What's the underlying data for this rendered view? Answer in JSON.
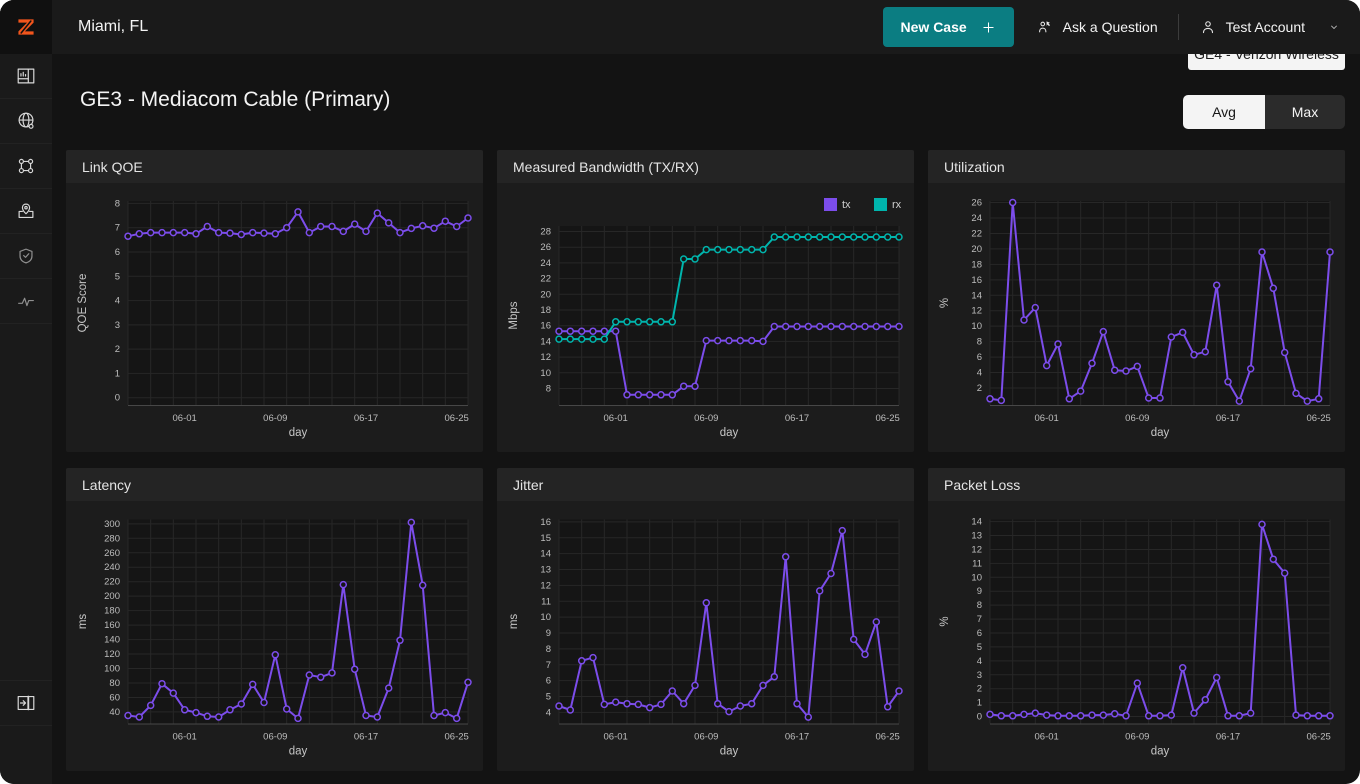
{
  "header": {
    "location": "Miami, FL",
    "new_case_label": "New Case",
    "ask_question_label": "Ask a Question",
    "account_label": "Test Account"
  },
  "page": {
    "title": "GE3 - Mediacom Cable (Primary)",
    "link_button_label": "GE4 - Verizon Wireless",
    "toggle": {
      "avg": "Avg",
      "max": "Max",
      "selected": "Avg"
    }
  },
  "sidebar": {
    "items": [
      {
        "icon": "dashboard-grid-icon"
      },
      {
        "icon": "globe-network-icon"
      },
      {
        "icon": "topology-nodes-icon"
      },
      {
        "icon": "map-pin-icon"
      },
      {
        "icon": "shield-check-icon"
      },
      {
        "icon": "pulse-icon"
      }
    ],
    "bottom_item": {
      "icon": "collapse-panel-icon"
    }
  },
  "colors": {
    "accent_purple": "#7c4deb",
    "accent_teal": "#00b5ad",
    "button_teal": "#0b7d82",
    "logo_orange": "#f2551c",
    "selected_toggle_bg": "#f4f4f4"
  },
  "chart_data": [
    {
      "type": "line",
      "title": "Link QOE",
      "xlabel": "day",
      "ylabel": "QOE Score",
      "x_tick_labels": [
        "06-01",
        "06-09",
        "06-17",
        "06-25"
      ],
      "x_tick_indices": [
        5,
        13,
        21,
        29
      ],
      "n_points": 31,
      "ylim": [
        -0.3,
        8.1
      ],
      "yticks": [
        0,
        1,
        2,
        3,
        4,
        5,
        6,
        7,
        8
      ],
      "series": [
        {
          "name": "qoe",
          "color": "#7c4deb",
          "values": [
            6.65,
            6.75,
            6.8,
            6.8,
            6.8,
            6.8,
            6.75,
            7.05,
            6.8,
            6.78,
            6.72,
            6.8,
            6.78,
            6.75,
            7.0,
            7.65,
            6.8,
            7.05,
            7.05,
            6.85,
            7.15,
            6.85,
            7.6,
            7.2,
            6.8,
            6.97,
            7.08,
            6.98,
            7.27,
            7.05,
            7.4
          ]
        }
      ]
    },
    {
      "type": "line",
      "title": "Measured Bandwidth (TX/RX)",
      "xlabel": "day",
      "ylabel": "Mbps",
      "x_tick_labels": [
        "06-01",
        "06-09",
        "06-17",
        "06-25"
      ],
      "x_tick_indices": [
        5,
        13,
        21,
        29
      ],
      "n_points": 31,
      "ylim": [
        5.9,
        28.7
      ],
      "yticks": [
        8,
        10,
        12,
        14,
        16,
        18,
        20,
        22,
        24,
        26,
        28
      ],
      "legend_position": "top-right",
      "series": [
        {
          "name": "tx",
          "color": "#7c4deb",
          "values": [
            15.3,
            15.3,
            15.3,
            15.3,
            15.3,
            15.3,
            7.2,
            7.2,
            7.2,
            7.2,
            7.2,
            8.3,
            8.3,
            14.1,
            14.1,
            14.1,
            14.1,
            14.1,
            14.0,
            15.9,
            15.9,
            15.9,
            15.9,
            15.9,
            15.9,
            15.9,
            15.9,
            15.9,
            15.9,
            15.9,
            15.9
          ]
        },
        {
          "name": "rx",
          "color": "#00b5ad",
          "values": [
            14.3,
            14.3,
            14.3,
            14.3,
            14.3,
            16.5,
            16.5,
            16.5,
            16.5,
            16.5,
            16.5,
            24.5,
            24.5,
            25.7,
            25.7,
            25.7,
            25.7,
            25.7,
            25.7,
            27.3,
            27.3,
            27.3,
            27.3,
            27.3,
            27.3,
            27.3,
            27.3,
            27.3,
            27.3,
            27.3,
            27.3
          ]
        }
      ]
    },
    {
      "type": "line",
      "title": "Utilization",
      "xlabel": "day",
      "ylabel": "%",
      "x_tick_labels": [
        "06-01",
        "06-09",
        "06-17",
        "06-25"
      ],
      "x_tick_indices": [
        5,
        13,
        21,
        29
      ],
      "n_points": 31,
      "ylim": [
        -0.2,
        26.2
      ],
      "yticks": [
        2,
        4,
        6,
        8,
        10,
        12,
        14,
        16,
        18,
        20,
        22,
        24,
        26
      ],
      "series": [
        {
          "name": "utilization",
          "color": "#7c4deb",
          "values": [
            0.6,
            0.4,
            26,
            10.8,
            12.4,
            4.9,
            7.7,
            0.6,
            1.6,
            5.2,
            9.3,
            4.3,
            4.2,
            4.8,
            0.7,
            0.7,
            8.6,
            9.2,
            6.3,
            6.7,
            15.3,
            2.8,
            0.3,
            4.5,
            19.6,
            14.9,
            6.6,
            1.3,
            0.3,
            0.6,
            19.6
          ]
        }
      ]
    },
    {
      "type": "line",
      "title": "Latency",
      "xlabel": "day",
      "ylabel": "ms",
      "x_tick_labels": [
        "06-01",
        "06-09",
        "06-17",
        "06-25"
      ],
      "x_tick_indices": [
        5,
        13,
        21,
        29
      ],
      "n_points": 31,
      "ylim": [
        24,
        306
      ],
      "yticks": [
        40,
        60,
        80,
        100,
        120,
        140,
        160,
        180,
        200,
        220,
        240,
        260,
        280,
        300
      ],
      "series": [
        {
          "name": "latency",
          "color": "#7c4deb",
          "values": [
            35,
            33,
            49,
            79,
            66,
            43,
            39,
            34,
            33,
            43,
            51,
            78,
            53,
            119,
            44,
            31,
            91,
            88,
            94,
            216,
            99,
            35,
            33,
            73,
            139,
            302,
            215,
            35,
            39,
            31,
            81
          ]
        }
      ]
    },
    {
      "type": "line",
      "title": "Jitter",
      "xlabel": "day",
      "ylabel": "ms",
      "x_tick_labels": [
        "06-01",
        "06-09",
        "06-17",
        "06-25"
      ],
      "x_tick_indices": [
        5,
        13,
        21,
        29
      ],
      "n_points": 31,
      "ylim": [
        3.3,
        16.15
      ],
      "yticks": [
        4,
        5,
        6,
        7,
        8,
        9,
        10,
        11,
        12,
        13,
        14,
        15,
        16
      ],
      "series": [
        {
          "name": "jitter",
          "color": "#7c4deb",
          "values": [
            4.4,
            4.15,
            7.25,
            7.45,
            4.5,
            4.65,
            4.55,
            4.5,
            4.3,
            4.5,
            5.35,
            4.55,
            5.7,
            10.9,
            4.55,
            4.05,
            4.4,
            4.55,
            5.7,
            6.25,
            13.8,
            4.55,
            3.7,
            11.65,
            12.75,
            15.45,
            8.6,
            7.65,
            9.7,
            4.35,
            5.35
          ]
        }
      ]
    },
    {
      "type": "line",
      "title": "Packet Loss",
      "xlabel": "day",
      "ylabel": "%",
      "x_tick_labels": [
        "06-01",
        "06-09",
        "06-17",
        "06-25"
      ],
      "x_tick_indices": [
        5,
        13,
        21,
        29
      ],
      "n_points": 31,
      "ylim": [
        -0.5,
        14.15
      ],
      "yticks": [
        0,
        1,
        2,
        3,
        4,
        5,
        6,
        7,
        8,
        9,
        10,
        11,
        12,
        13,
        14
      ],
      "series": [
        {
          "name": "packet_loss",
          "color": "#7c4deb",
          "values": [
            0.15,
            0.05,
            0.05,
            0.15,
            0.25,
            0.1,
            0.05,
            0.05,
            0.05,
            0.1,
            0.1,
            0.2,
            0.05,
            2.4,
            0.05,
            0.05,
            0.1,
            3.5,
            0.25,
            1.2,
            2.8,
            0.05,
            0.05,
            0.25,
            13.8,
            11.3,
            10.3,
            0.1,
            0.05,
            0.05,
            0.05
          ]
        }
      ]
    }
  ]
}
